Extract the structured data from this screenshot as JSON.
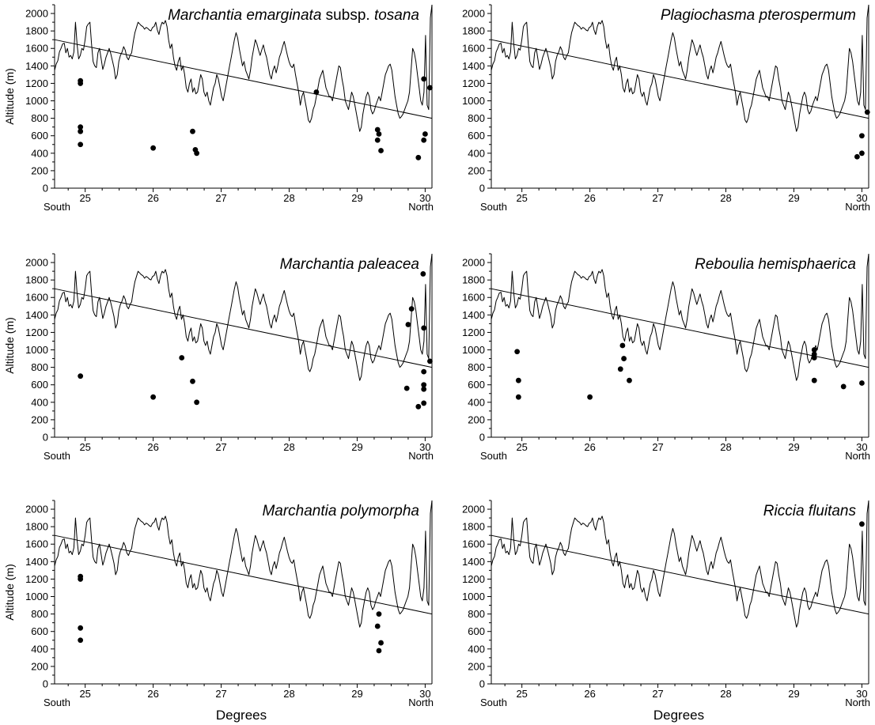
{
  "figure": {
    "xlabel": "Degrees",
    "ylabel": "Altitude (m)",
    "south_label": "South",
    "north_label": "North"
  },
  "chart_data": [
    {
      "type": "line+scatter",
      "title_parts": [
        {
          "text": "Marchantia emarginata",
          "italic": true
        },
        {
          "text": " subsp. ",
          "italic": false
        },
        {
          "text": "tosana",
          "italic": true
        }
      ],
      "xlim": [
        24.55,
        30.1
      ],
      "ylim": [
        0,
        2100
      ],
      "x_ticks": [
        25,
        26,
        27,
        28,
        29,
        30
      ],
      "y_ticks": [
        0,
        200,
        400,
        600,
        800,
        1000,
        1200,
        1400,
        1600,
        1800,
        2000
      ],
      "trend": [
        [
          24.55,
          1700
        ],
        [
          30.1,
          800
        ]
      ],
      "points": [
        [
          24.93,
          1230
        ],
        [
          24.93,
          1200
        ],
        [
          24.93,
          700
        ],
        [
          24.93,
          650
        ],
        [
          24.93,
          500
        ],
        [
          26.0,
          460
        ],
        [
          26.58,
          650
        ],
        [
          26.62,
          440
        ],
        [
          26.64,
          400
        ],
        [
          28.4,
          1100
        ],
        [
          29.3,
          670
        ],
        [
          29.32,
          620
        ],
        [
          29.3,
          550
        ],
        [
          29.35,
          430
        ],
        [
          29.9,
          350
        ],
        [
          29.98,
          1250
        ],
        [
          30.0,
          620
        ],
        [
          29.98,
          550
        ],
        [
          30.07,
          1150
        ]
      ]
    },
    {
      "type": "line+scatter",
      "title_parts": [
        {
          "text": "Plagiochasma pterospermum",
          "italic": true
        }
      ],
      "xlim": [
        24.55,
        30.1
      ],
      "ylim": [
        0,
        2100
      ],
      "x_ticks": [
        25,
        26,
        27,
        28,
        29,
        30
      ],
      "y_ticks": [
        0,
        200,
        400,
        600,
        800,
        1000,
        1200,
        1400,
        1600,
        1800,
        2000
      ],
      "trend": [
        [
          24.55,
          1700
        ],
        [
          30.1,
          800
        ]
      ],
      "points": [
        [
          30.08,
          870
        ],
        [
          30.0,
          600
        ],
        [
          30.0,
          400
        ],
        [
          29.93,
          360
        ]
      ]
    },
    {
      "type": "line+scatter",
      "title_parts": [
        {
          "text": "Marchantia paleacea",
          "italic": true
        }
      ],
      "xlim": [
        24.55,
        30.1
      ],
      "ylim": [
        0,
        2100
      ],
      "x_ticks": [
        25,
        26,
        27,
        28,
        29,
        30
      ],
      "y_ticks": [
        0,
        200,
        400,
        600,
        800,
        1000,
        1200,
        1400,
        1600,
        1800,
        2000
      ],
      "trend": [
        [
          24.55,
          1700
        ],
        [
          30.1,
          800
        ]
      ],
      "points": [
        [
          24.93,
          700
        ],
        [
          26.0,
          460
        ],
        [
          26.42,
          910
        ],
        [
          26.58,
          640
        ],
        [
          26.64,
          400
        ],
        [
          29.73,
          560
        ],
        [
          29.75,
          1290
        ],
        [
          29.8,
          1470
        ],
        [
          29.9,
          350
        ],
        [
          29.97,
          1870
        ],
        [
          29.98,
          1250
        ],
        [
          29.98,
          750
        ],
        [
          29.98,
          600
        ],
        [
          29.98,
          550
        ],
        [
          29.98,
          390
        ],
        [
          30.07,
          870
        ]
      ]
    },
    {
      "type": "line+scatter",
      "title_parts": [
        {
          "text": "Reboulia hemisphaerica",
          "italic": true
        }
      ],
      "xlim": [
        24.55,
        30.1
      ],
      "ylim": [
        0,
        2100
      ],
      "x_ticks": [
        25,
        26,
        27,
        28,
        29,
        30
      ],
      "y_ticks": [
        0,
        200,
        400,
        600,
        800,
        1000,
        1200,
        1400,
        1600,
        1800,
        2000
      ],
      "trend": [
        [
          24.55,
          1700
        ],
        [
          30.1,
          800
        ]
      ],
      "points": [
        [
          24.93,
          980
        ],
        [
          24.95,
          650
        ],
        [
          24.95,
          460
        ],
        [
          26.0,
          460
        ],
        [
          26.45,
          780
        ],
        [
          26.48,
          1050
        ],
        [
          26.5,
          900
        ],
        [
          26.58,
          650
        ],
        [
          29.3,
          1000
        ],
        [
          29.3,
          950
        ],
        [
          29.3,
          910
        ],
        [
          29.3,
          650
        ],
        [
          29.73,
          580
        ],
        [
          30.0,
          620
        ]
      ]
    },
    {
      "type": "line+scatter",
      "title_parts": [
        {
          "text": "Marchantia polymorpha",
          "italic": true
        }
      ],
      "xlim": [
        24.55,
        30.1
      ],
      "ylim": [
        0,
        2100
      ],
      "x_ticks": [
        25,
        26,
        27,
        28,
        29,
        30
      ],
      "y_ticks": [
        0,
        200,
        400,
        600,
        800,
        1000,
        1200,
        1400,
        1600,
        1800,
        2000
      ],
      "trend": [
        [
          24.55,
          1700
        ],
        [
          30.1,
          800
        ]
      ],
      "points": [
        [
          24.93,
          1230
        ],
        [
          24.93,
          1200
        ],
        [
          24.93,
          640
        ],
        [
          24.93,
          500
        ],
        [
          29.32,
          800
        ],
        [
          29.3,
          660
        ],
        [
          29.35,
          470
        ],
        [
          29.32,
          380
        ]
      ]
    },
    {
      "type": "line+scatter",
      "title_parts": [
        {
          "text": "Riccia fluitans",
          "italic": true
        }
      ],
      "xlim": [
        24.55,
        30.1
      ],
      "ylim": [
        0,
        2100
      ],
      "x_ticks": [
        25,
        26,
        27,
        28,
        29,
        30
      ],
      "y_ticks": [
        0,
        200,
        400,
        600,
        800,
        1000,
        1200,
        1400,
        1600,
        1800,
        2000
      ],
      "trend": [
        [
          24.55,
          1700
        ],
        [
          30.1,
          800
        ]
      ],
      "points": [
        [
          30.0,
          1830
        ]
      ]
    }
  ],
  "profile_line": {
    "x_start": 24.55,
    "x_end": 30.1,
    "altitudes": [
      1350,
      1420,
      1460,
      1560,
      1600,
      1650,
      1660,
      1550,
      1600,
      1500,
      1520,
      1480,
      1560,
      1900,
      1650,
      1480,
      1520,
      1600,
      1580,
      1700,
      1850,
      1880,
      1900,
      1650,
      1450,
      1400,
      1380,
      1550,
      1600,
      1480,
      1360,
      1420,
      1500,
      1550,
      1600,
      1540,
      1460,
      1380,
      1250,
      1300,
      1450,
      1520,
      1560,
      1620,
      1580,
      1500,
      1470,
      1520,
      1550,
      1680,
      1780,
      1840,
      1900,
      1880,
      1860,
      1850,
      1820,
      1840,
      1830,
      1810,
      1800,
      1840,
      1850,
      1900,
      1810,
      1760,
      1850,
      1900,
      1880,
      1920,
      1850,
      1700,
      1600,
      1650,
      1500,
      1400,
      1350,
      1450,
      1500,
      1350,
      1400,
      1300,
      1150,
      1100,
      1200,
      1250,
      1100,
      1150,
      1080,
      1100,
      1200,
      1300,
      1250,
      1100,
      1050,
      1100,
      1000,
      950,
      1050,
      1150,
      1200,
      1300,
      1250,
      1150,
      1050,
      1000,
      1100,
      1200,
      1300,
      1400,
      1500,
      1600,
      1700,
      1780,
      1720,
      1600,
      1500,
      1400,
      1450,
      1350,
      1300,
      1250,
      1350,
      1500,
      1600,
      1700,
      1650,
      1580,
      1520,
      1580,
      1640,
      1560,
      1500,
      1400,
      1300,
      1250,
      1350,
      1400,
      1320,
      1400,
      1500,
      1550,
      1620,
      1680,
      1600,
      1520,
      1450,
      1400,
      1380,
      1420,
      1300,
      1200,
      1100,
      950,
      1050,
      1100,
      1000,
      900,
      780,
      750,
      800,
      900,
      950,
      1050,
      1150,
      1250,
      1300,
      1350,
      1250,
      1150,
      1100,
      1050,
      1050,
      1000,
      1100,
      1200,
      1300,
      1400,
      1380,
      1250,
      1150,
      1000,
      950,
      900,
      1000,
      1100,
      1050,
      950,
      850,
      750,
      650,
      700,
      850,
      950,
      1050,
      1100,
      1050,
      900,
      850,
      880,
      950,
      1000,
      1050,
      1000,
      1100,
      1200,
      1300,
      1350,
      1400,
      1420,
      1350,
      1200,
      1050,
      950,
      850,
      800,
      820,
      850,
      900,
      950,
      1000,
      1100,
      1350,
      1600,
      1550,
      1450,
      1300,
      1150,
      1000,
      950,
      1100,
      1750,
      950,
      900,
      1950,
      2100
    ]
  }
}
